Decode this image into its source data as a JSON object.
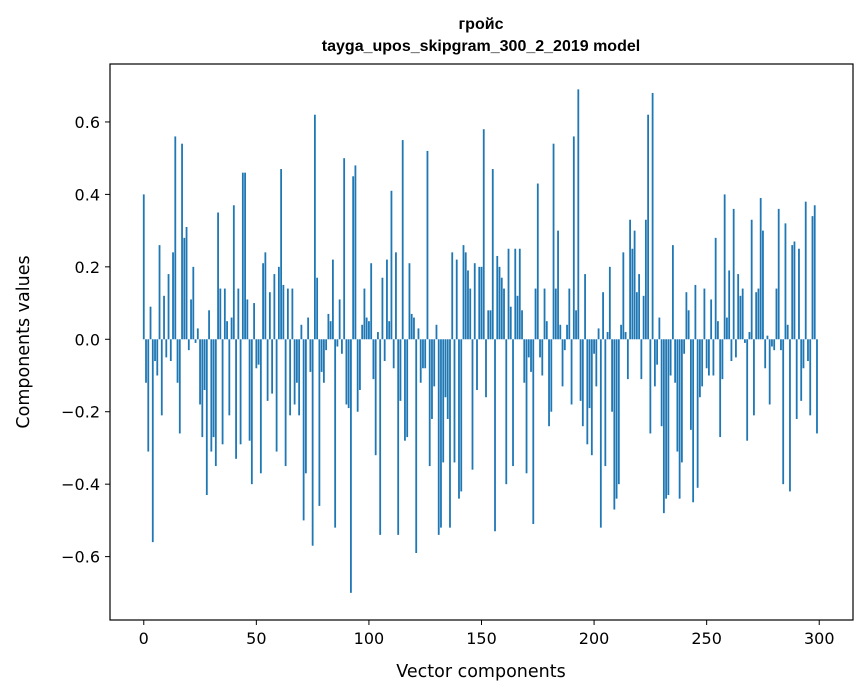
{
  "chart_data": {
    "type": "bar",
    "title": "гройс",
    "subtitle": "tayga_upos_skipgram_300_2_2019 model",
    "xlabel": "Vector components",
    "ylabel": "Components values",
    "xlim": [
      -15,
      315
    ],
    "ylim": [
      -0.775,
      0.76
    ],
    "xticks": [
      0,
      50,
      100,
      150,
      200,
      250,
      300
    ],
    "yticks": [
      -0.6,
      -0.4,
      -0.2,
      0.0,
      0.2,
      0.4,
      0.6
    ],
    "ytick_labels": [
      "−0.6",
      "−0.4",
      "−0.2",
      "0.0",
      "0.2",
      "0.4",
      "0.6"
    ],
    "grid": false,
    "bar_color": "#1f77b4",
    "x_start": 0,
    "values": [
      0.4,
      -0.12,
      -0.31,
      0.09,
      -0.56,
      -0.06,
      -0.1,
      0.26,
      -0.21,
      0.12,
      -0.05,
      0.18,
      -0.06,
      0.24,
      0.56,
      -0.12,
      -0.26,
      0.54,
      0.28,
      0.31,
      -0.03,
      0.11,
      0.2,
      -0.01,
      0.03,
      -0.18,
      -0.27,
      -0.14,
      -0.43,
      0.08,
      -0.31,
      -0.27,
      -0.35,
      0.35,
      0.14,
      -0.29,
      0.14,
      0.05,
      -0.21,
      0.06,
      0.37,
      -0.33,
      0.14,
      -0.29,
      0.46,
      0.46,
      0.11,
      -0.28,
      -0.4,
      0.1,
      -0.08,
      -0.07,
      -0.37,
      0.21,
      0.24,
      -0.17,
      0.13,
      -0.15,
      0.18,
      -0.31,
      0.2,
      0.47,
      0.15,
      -0.35,
      0.14,
      -0.21,
      0.14,
      -0.18,
      -0.12,
      -0.21,
      0.04,
      -0.5,
      -0.37,
      0.06,
      -0.09,
      -0.57,
      0.62,
      0.17,
      -0.46,
      -0.09,
      -0.12,
      -0.03,
      0.07,
      0.05,
      0.22,
      -0.52,
      -0.02,
      0.11,
      -0.04,
      0.5,
      -0.18,
      -0.19,
      -0.7,
      0.45,
      0.48,
      -0.2,
      -0.14,
      0.04,
      0.14,
      0.06,
      0.05,
      0.21,
      -0.11,
      -0.32,
      0.02,
      -0.54,
      0.17,
      -0.06,
      0.22,
      0.05,
      0.41,
      -0.08,
      0.24,
      -0.54,
      -0.17,
      0.55,
      -0.28,
      -0.27,
      0.21,
      0.07,
      0.06,
      -0.59,
      0.03,
      -0.12,
      -0.08,
      -0.08,
      0.52,
      -0.35,
      -0.22,
      -0.13,
      0.04,
      -0.54,
      -0.52,
      -0.34,
      -0.16,
      -0.22,
      -0.52,
      0.24,
      -0.34,
      0.22,
      -0.44,
      -0.42,
      0.26,
      0.24,
      0.19,
      0.14,
      -0.36,
      0.21,
      -0.14,
      0.2,
      0.2,
      0.58,
      -0.16,
      0.08,
      0.08,
      0.47,
      -0.53,
      0.23,
      0.2,
      0.17,
      0.14,
      -0.4,
      0.25,
      0.09,
      -0.35,
      0.25,
      0.12,
      0.25,
      0.08,
      -0.12,
      -0.37,
      -0.05,
      -0.09,
      -0.51,
      0.14,
      0.43,
      -0.05,
      -0.1,
      0.14,
      0.05,
      -0.24,
      -0.2,
      0.54,
      0.14,
      0.3,
      0.04,
      -0.13,
      -0.03,
      0.04,
      0.14,
      -0.18,
      0.56,
      0.08,
      0.69,
      -0.17,
      -0.24,
      0.18,
      -0.29,
      -0.19,
      -0.32,
      -0.04,
      -0.13,
      0.03,
      -0.52,
      0.13,
      -0.35,
      0.02,
      0.2,
      -0.2,
      -0.47,
      -0.44,
      -0.4,
      0.04,
      0.24,
      0.02,
      -0.11,
      0.33,
      0.25,
      0.3,
      0.13,
      0.18,
      -0.11,
      0.12,
      0.33,
      0.62,
      -0.26,
      0.68,
      -0.13,
      -0.07,
      0.06,
      -0.24,
      -0.48,
      -0.44,
      -0.43,
      -0.1,
      0.26,
      -0.12,
      -0.31,
      -0.44,
      -0.34,
      -0.04,
      0.13,
      0.08,
      -0.25,
      -0.45,
      0.15,
      -0.41,
      -0.16,
      -0.13,
      0.14,
      -0.08,
      -0.1,
      0.11,
      -0.1,
      0.28,
      0.05,
      -0.27,
      -0.11,
      0.4,
      0.06,
      0.19,
      -0.06,
      0.36,
      -0.05,
      0.18,
      0.12,
      0.14,
      -0.01,
      -0.28,
      0.02,
      0.33,
      -0.21,
      0.13,
      0.14,
      0.39,
      0.3,
      -0.08,
      0.01,
      -0.18,
      -0.02,
      -0.03,
      0.14,
      0.36,
      -0.03,
      -0.4,
      0.32,
      0.04,
      -0.42,
      0.26,
      0.27,
      -0.22,
      0.25,
      -0.17,
      -0.08,
      0.38,
      -0.06,
      -0.21,
      0.34,
      0.37,
      -0.26
    ]
  }
}
